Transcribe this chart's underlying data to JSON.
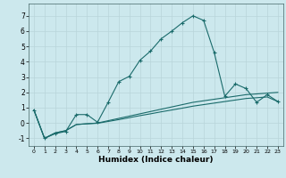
{
  "xlabel": "Humidex (Indice chaleur)",
  "bg_color": "#cce8ed",
  "line_color": "#1a6b6b",
  "grid_color": "#b8d5da",
  "xlim": [
    -0.5,
    23.5
  ],
  "ylim": [
    -1.5,
    7.8
  ],
  "yticks": [
    -1,
    0,
    1,
    2,
    3,
    4,
    5,
    6,
    7
  ],
  "xticks": [
    0,
    1,
    2,
    3,
    4,
    5,
    6,
    7,
    8,
    9,
    10,
    11,
    12,
    13,
    14,
    15,
    16,
    17,
    18,
    19,
    20,
    21,
    22,
    23
  ],
  "line1_x": [
    0,
    1,
    2,
    3,
    4,
    5,
    6,
    7,
    8,
    9,
    10,
    11,
    12,
    13,
    14,
    15,
    16,
    17,
    18,
    19,
    20,
    21,
    22,
    23
  ],
  "line1_y": [
    0.85,
    -1.0,
    -0.7,
    -0.55,
    0.55,
    0.55,
    0.05,
    1.35,
    2.7,
    3.05,
    4.1,
    4.7,
    5.5,
    6.0,
    6.55,
    7.0,
    6.7,
    4.6,
    1.75,
    2.55,
    2.25,
    1.35,
    1.85,
    1.4
  ],
  "line2_x": [
    0,
    1,
    2,
    3,
    4,
    5,
    6,
    7,
    8,
    9,
    10,
    11,
    12,
    13,
    14,
    15,
    16,
    17,
    18,
    19,
    20,
    21,
    22,
    23
  ],
  "line2_y": [
    0.85,
    -1.0,
    -0.65,
    -0.5,
    -0.1,
    -0.05,
    0.0,
    0.15,
    0.3,
    0.45,
    0.6,
    0.75,
    0.9,
    1.05,
    1.2,
    1.35,
    1.45,
    1.55,
    1.65,
    1.75,
    1.85,
    1.9,
    1.95,
    2.0
  ],
  "line3_x": [
    0,
    1,
    2,
    3,
    4,
    5,
    6,
    7,
    8,
    9,
    10,
    11,
    12,
    13,
    14,
    15,
    16,
    17,
    18,
    19,
    20,
    21,
    22,
    23
  ],
  "line3_y": [
    0.85,
    -1.0,
    -0.65,
    -0.5,
    -0.1,
    -0.05,
    -0.02,
    0.1,
    0.22,
    0.35,
    0.48,
    0.6,
    0.73,
    0.85,
    0.97,
    1.1,
    1.2,
    1.3,
    1.4,
    1.5,
    1.6,
    1.65,
    1.7,
    1.4
  ]
}
